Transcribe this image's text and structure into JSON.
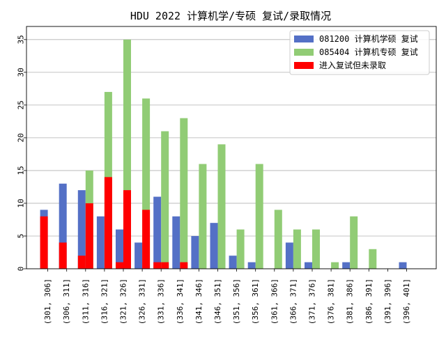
{
  "chart_data": {
    "type": "bar",
    "title": "HDU 2022 计算机学/专硕 复试/录取情况",
    "xlabel": "",
    "ylabel": "",
    "ylim": [
      0,
      37
    ],
    "yticks": [
      0,
      5,
      10,
      15,
      20,
      25,
      30,
      35
    ],
    "grid": "horizontal",
    "legend_position": "top-right",
    "categories": [
      "(301, 306]",
      "(306, 311]",
      "(311, 316]",
      "(316, 321]",
      "(321, 326]",
      "(326, 331]",
      "(331, 336]",
      "(336, 341]",
      "(341, 346]",
      "(346, 351]",
      "(351, 356]",
      "(356, 361]",
      "(361, 366]",
      "(366, 371]",
      "(371, 376]",
      "(376, 381]",
      "(381, 386]",
      "(386, 391]",
      "(391, 396]",
      "(396, 401]"
    ],
    "series": [
      {
        "name": "081200 计算机学硕 复试",
        "color": "#5470c6",
        "position": "left",
        "values": [
          9,
          13,
          12,
          8,
          6,
          4,
          11,
          8,
          5,
          7,
          2,
          1,
          0,
          4,
          1,
          0,
          1,
          0,
          0,
          1
        ]
      },
      {
        "name": "085404 计算机专硕 复试",
        "color": "#91cc75",
        "position": "right",
        "values": [
          0,
          0,
          15,
          27,
          35,
          26,
          21,
          23,
          16,
          19,
          6,
          16,
          9,
          6,
          6,
          1,
          8,
          3,
          0,
          0
        ]
      },
      {
        "name": "进入复试但未录取",
        "color": "#ff0000",
        "position": "overlay",
        "left_values": [
          8,
          4,
          2,
          0,
          1,
          0,
          1,
          0,
          0,
          0,
          0,
          0,
          0,
          0,
          0,
          0,
          0,
          0,
          0,
          0
        ],
        "right_values": [
          0,
          0,
          10,
          14,
          12,
          9,
          1,
          1,
          0,
          0,
          0,
          0,
          0,
          0,
          0,
          0,
          0,
          0,
          0,
          0
        ]
      }
    ]
  }
}
